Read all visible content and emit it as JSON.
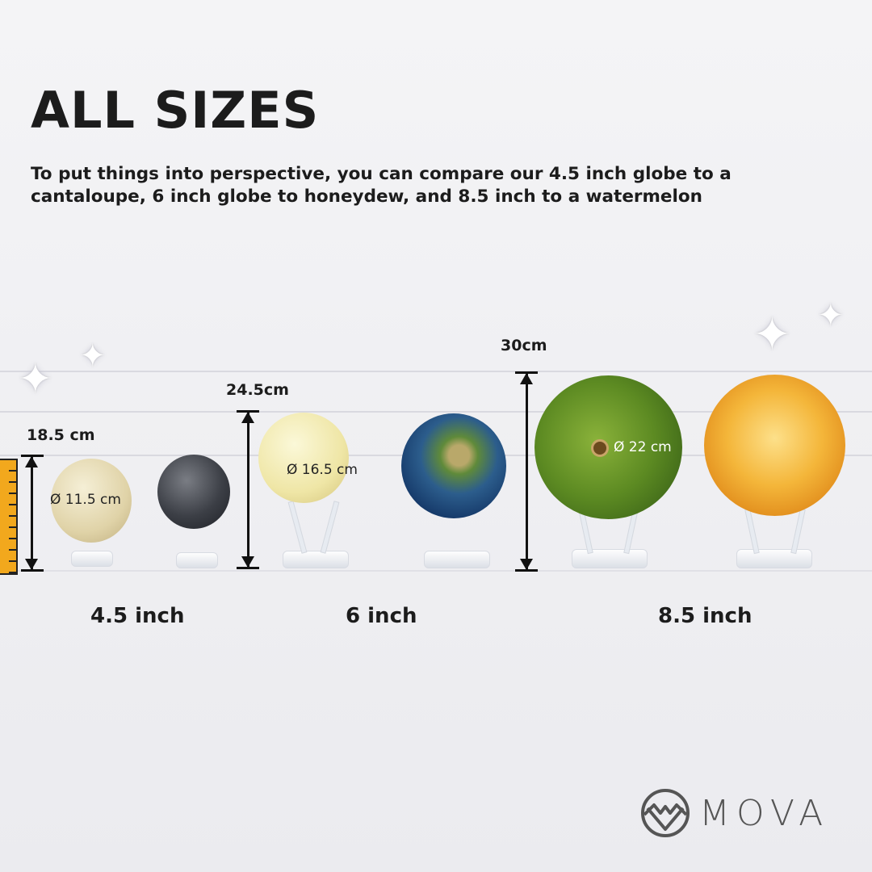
{
  "heading": "ALL SIZES",
  "description": "To put things into perspective, you can compare our 4.5 inch globe to a cantaloupe, 6 inch globe to honeydew, and 8.5 inch to a watermelon",
  "groups": [
    {
      "size_label": "4.5 inch",
      "height": "18.5 cm",
      "diameter": "Ø 11.5 cm",
      "fruit": "cantaloupe",
      "globe": "moon"
    },
    {
      "size_label": "6 inch",
      "height": "24.5cm",
      "diameter": "Ø 16.5 cm",
      "fruit": "honeydew",
      "globe": "earth"
    },
    {
      "size_label": "8.5 inch",
      "height": "30cm",
      "diameter": "Ø 22 cm",
      "fruit": "watermelon",
      "globe": "venus"
    }
  ],
  "brand": {
    "name": "MOVA",
    "logo_icon": "mountain-circle-logo"
  },
  "colors": {
    "ruler": "#f2a81d",
    "text": "#1c1c1c",
    "logo": "#555555"
  }
}
